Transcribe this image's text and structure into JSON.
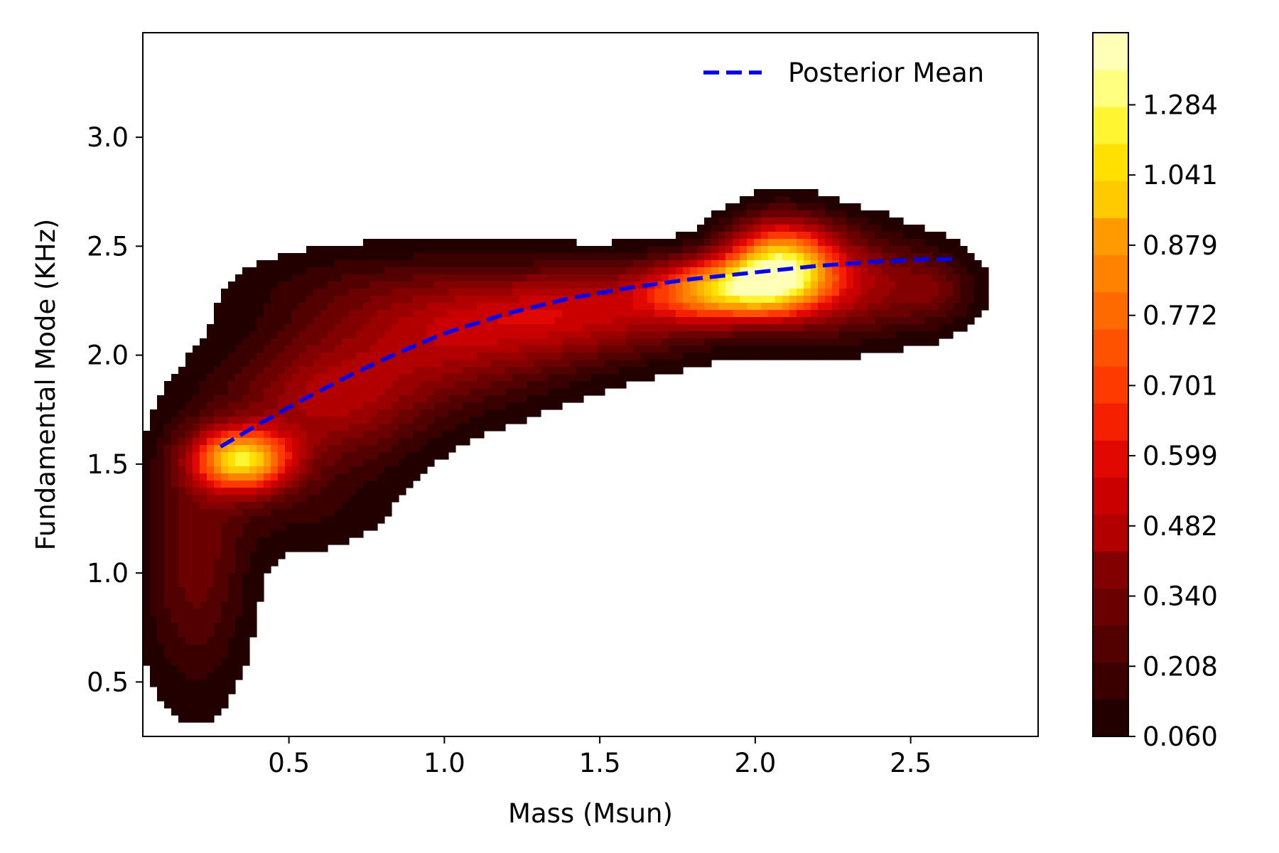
{
  "chart_data": {
    "type": "heatmap",
    "subtype": "filled-contour (kernel density)",
    "xlabel": "Mass (Msun)",
    "ylabel": "Fundamental Mode (KHz)",
    "xlim": [
      0.03,
      2.91
    ],
    "ylim": [
      0.25,
      3.48
    ],
    "x_ticks": [
      {
        "value": 0.5,
        "label": "0.5"
      },
      {
        "value": 1.0,
        "label": "1.0"
      },
      {
        "value": 1.5,
        "label": "1.5"
      },
      {
        "value": 2.0,
        "label": "2.0"
      },
      {
        "value": 2.5,
        "label": "2.5"
      }
    ],
    "y_ticks": [
      {
        "value": 0.5,
        "label": "0.5"
      },
      {
        "value": 1.0,
        "label": "1.0"
      },
      {
        "value": 1.5,
        "label": "1.5"
      },
      {
        "value": 2.0,
        "label": "2.0"
      },
      {
        "value": 2.5,
        "label": "2.5"
      },
      {
        "value": 3.0,
        "label": "3.0"
      }
    ],
    "grid": false,
    "legend": {
      "position": "top-right",
      "entries": [
        {
          "label": "Posterior Mean",
          "color": "#0000ff",
          "style": "dashed"
        }
      ]
    },
    "colormap": "hot",
    "colors": [
      "#220000",
      "#3a0000",
      "#520000",
      "#6a0000",
      "#820000",
      "#9a0000",
      "#b20000",
      "#ca0000",
      "#e00800",
      "#f52000",
      "#ff3a00",
      "#ff5200",
      "#ff6a00",
      "#ff8200",
      "#ff9a00",
      "#ffb200",
      "#ffca00",
      "#ffe000",
      "#fff530",
      "#ffff80",
      "#ffffb8"
    ],
    "colorbar": {
      "ticks": [
        {
          "value": 0.06,
          "label": "0.060"
        },
        {
          "value": 0.208,
          "label": "0.208"
        },
        {
          "value": 0.34,
          "label": "0.340"
        },
        {
          "value": 0.482,
          "label": "0.482"
        },
        {
          "value": 0.599,
          "label": "0.599"
        },
        {
          "value": 0.701,
          "label": "0.701"
        },
        {
          "value": 0.772,
          "label": "0.772"
        },
        {
          "value": 0.879,
          "label": "0.879"
        },
        {
          "value": 1.041,
          "label": "1.041"
        },
        {
          "value": 1.284,
          "label": "1.284"
        }
      ],
      "levels": 19
    },
    "density_components": [
      {
        "cx": 0.2,
        "cy": 1.05,
        "sx": 0.12,
        "sy": 0.42,
        "w": 0.28
      },
      {
        "cx": 0.35,
        "cy": 1.52,
        "sx": 0.11,
        "sy": 0.1,
        "w": 1.05
      },
      {
        "cx": 0.62,
        "cy": 1.78,
        "sx": 0.22,
        "sy": 0.2,
        "w": 0.42
      },
      {
        "cx": 1.0,
        "cy": 2.05,
        "sx": 0.28,
        "sy": 0.2,
        "w": 0.36
      },
      {
        "cx": 1.45,
        "cy": 2.2,
        "sx": 0.3,
        "sy": 0.15,
        "w": 0.46
      },
      {
        "cx": 1.9,
        "cy": 2.3,
        "sx": 0.17,
        "sy": 0.1,
        "w": 0.9
      },
      {
        "cx": 2.08,
        "cy": 2.42,
        "sx": 0.12,
        "sy": 0.14,
        "w": 1.0
      },
      {
        "cx": 2.3,
        "cy": 2.33,
        "sx": 0.17,
        "sy": 0.17,
        "w": 0.4
      },
      {
        "cx": 2.58,
        "cy": 2.3,
        "sx": 0.1,
        "sy": 0.12,
        "w": 0.22
      },
      {
        "cx": 0.7,
        "cy": 2.3,
        "sx": 0.3,
        "sy": 0.15,
        "w": 0.12
      },
      {
        "cx": 0.55,
        "cy": 1.3,
        "sx": 0.2,
        "sy": 0.16,
        "w": 0.12
      }
    ],
    "series": [
      {
        "name": "Posterior Mean",
        "x": [
          0.28,
          0.4,
          0.55,
          0.7,
          0.85,
          1.0,
          1.2,
          1.4,
          1.6,
          1.8,
          2.0,
          2.2,
          2.4,
          2.55,
          2.65
        ],
        "y": [
          1.58,
          1.68,
          1.8,
          1.91,
          2.01,
          2.1,
          2.19,
          2.26,
          2.31,
          2.35,
          2.38,
          2.41,
          2.43,
          2.44,
          2.44
        ]
      }
    ]
  }
}
